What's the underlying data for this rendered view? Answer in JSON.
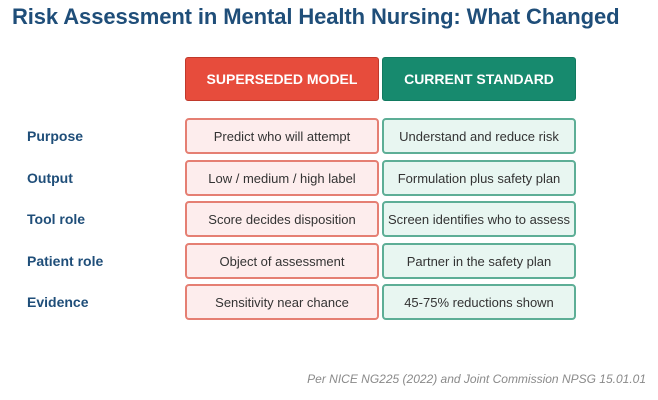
{
  "title": "Risk Assessment in Mental Health Nursing: What Changed",
  "columns": {
    "superseded": "SUPERSEDED MODEL",
    "current": "CURRENT STANDARD"
  },
  "rows": [
    {
      "label": "Purpose",
      "superseded": "Predict who will attempt",
      "current": "Understand and reduce risk"
    },
    {
      "label": "Output",
      "superseded": "Low / medium / high label",
      "current": "Formulation plus safety plan"
    },
    {
      "label": "Tool role",
      "superseded": "Score decides disposition",
      "current": "Screen identifies who to assess"
    },
    {
      "label": "Patient role",
      "superseded": "Object of assessment",
      "current": "Partner in the safety plan"
    },
    {
      "label": "Evidence",
      "superseded": "Sensitivity near chance",
      "current": "45-75% reductions shown"
    }
  ],
  "footnote": "Per NICE NG225 (2022) and Joint Commission NPSG 15.01.01",
  "colors": {
    "title": "#1f4e79",
    "superseded_header": "#e74c3c",
    "current_header": "#178a6e",
    "superseded_cell_fill": "#fdeded",
    "current_cell_fill": "#e8f6f1"
  }
}
